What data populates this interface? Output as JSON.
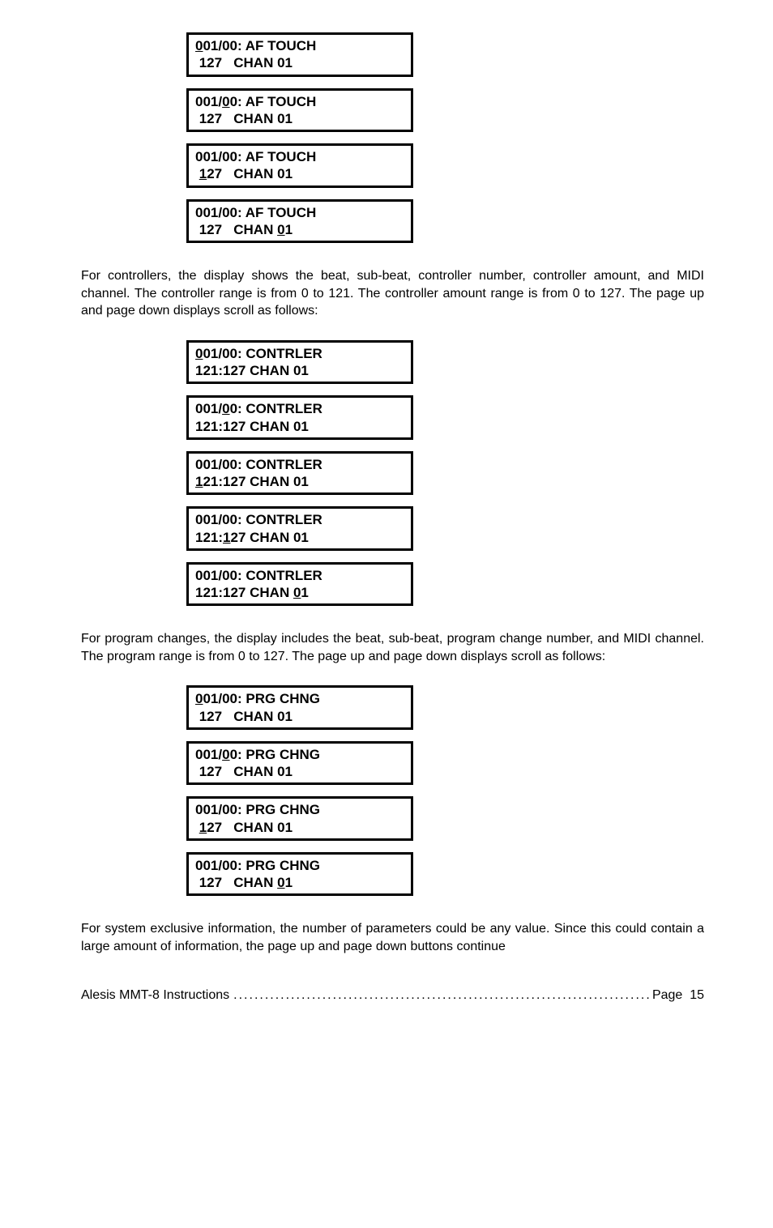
{
  "section1": {
    "displays": [
      {
        "line1_pre": "",
        "line1_u": "0",
        "line1_post": "01/00: AF TOUCH",
        "line2_pre": " 127   CHAN 01",
        "line2_u": "",
        "line2_post": ""
      },
      {
        "line1_pre": "001/",
        "line1_u": "0",
        "line1_post": "0: AF TOUCH",
        "line2_pre": " 127   CHAN 01",
        "line2_u": "",
        "line2_post": ""
      },
      {
        "line1_pre": "001/00: AF TOUCH",
        "line1_u": "",
        "line1_post": "",
        "line2_pre": " ",
        "line2_u": "1",
        "line2_post": "27   CHAN 01"
      },
      {
        "line1_pre": "001/00: AF TOUCH",
        "line1_u": "",
        "line1_post": "",
        "line2_pre": " 127   CHAN ",
        "line2_u": "0",
        "line2_post": "1"
      }
    ]
  },
  "paragraph1": "For controllers, the display shows the beat, sub-beat, controller number, controller amount, and MIDI channel.  The controller range is from 0 to 121.  The controller amount range is from 0 to 127.  The page up and page down displays scroll as follows:",
  "section2": {
    "displays": [
      {
        "line1_pre": "",
        "line1_u": "0",
        "line1_post": "01/00: CONTRLER",
        "line2_pre": "121:127 CHAN 01",
        "line2_u": "",
        "line2_post": ""
      },
      {
        "line1_pre": "001/",
        "line1_u": "0",
        "line1_post": "0: CONTRLER",
        "line2_pre": "121:127 CHAN 01",
        "line2_u": "",
        "line2_post": ""
      },
      {
        "line1_pre": "001/00: CONTRLER",
        "line1_u": "",
        "line1_post": "",
        "line2_pre": "",
        "line2_u": "1",
        "line2_post": "21:127 CHAN 01"
      },
      {
        "line1_pre": "001/00: CONTRLER",
        "line1_u": "",
        "line1_post": "",
        "line2_pre": "121:",
        "line2_u": "1",
        "line2_post": "27 CHAN 01"
      },
      {
        "line1_pre": "001/00: CONTRLER",
        "line1_u": "",
        "line1_post": "",
        "line2_pre": "121:127 CHAN ",
        "line2_u": "0",
        "line2_post": "1"
      }
    ]
  },
  "paragraph2": "For program changes, the display includes the beat, sub-beat, program change number, and MIDI channel.  The program range is from 0 to 127.  The page up and page down displays scroll as follows:",
  "section3": {
    "displays": [
      {
        "line1_pre": "",
        "line1_u": "0",
        "line1_post": "01/00: PRG CHNG",
        "line2_pre": " 127   CHAN 01",
        "line2_u": "",
        "line2_post": ""
      },
      {
        "line1_pre": "001/",
        "line1_u": "0",
        "line1_post": "0: PRG CHNG",
        "line2_pre": " 127   CHAN 01",
        "line2_u": "",
        "line2_post": ""
      },
      {
        "line1_pre": "001/00: PRG CHNG",
        "line1_u": "",
        "line1_post": "",
        "line2_pre": " ",
        "line2_u": "1",
        "line2_post": "27   CHAN 01"
      },
      {
        "line1_pre": "001/00: PRG CHNG",
        "line1_u": "",
        "line1_post": "",
        "line2_pre": " 127   CHAN ",
        "line2_u": "0",
        "line2_post": "1"
      }
    ]
  },
  "paragraph3": "For system exclusive information, the number of parameters could be any value.  Since this could contain a large amount of information, the page up and page down buttons continue",
  "footer": {
    "title": "Alesis MMT-8 Instructions",
    "dots": "..........................................................................................",
    "page_label": "Page",
    "page_num": "15"
  }
}
